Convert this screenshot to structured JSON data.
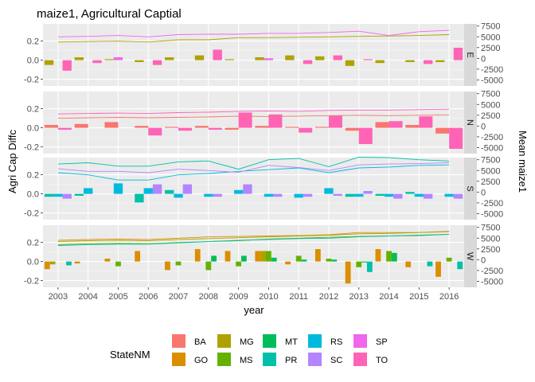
{
  "chart_data": {
    "type": "bar",
    "title": "maize1, Agricultural Captial",
    "xlabel": "year",
    "ylabel_left": "Agri Cap Diffc",
    "ylabel_right": "Mean maize1",
    "facet_type": "grid rows",
    "legend": {
      "title": "StateNM",
      "position": "bottom",
      "columns": 5
    },
    "x_ticks": [
      "2003",
      "2004",
      "2005",
      "2006",
      "2007",
      "2008",
      "2009",
      "2010",
      "2011",
      "2012",
      "2013",
      "2014",
      "2015",
      "2016"
    ],
    "y_left": {
      "ticks": [
        -0.2,
        0.0,
        0.2
      ],
      "tick_labels": [
        "-0.2",
        "0.0",
        "0.2"
      ],
      "range": [
        -0.27,
        0.38
      ]
    },
    "y_right": {
      "ticks": [
        -5000,
        -2500,
        0,
        2500,
        5000,
        7500
      ],
      "tick_labels": [
        "-5000",
        "-2500",
        "0",
        "2500",
        "5000",
        "7500"
      ],
      "range": [
        -6400,
        8000
      ]
    },
    "states": [
      {
        "code": "BA",
        "color": "#F8766D"
      },
      {
        "code": "GO",
        "color": "#DB8E00"
      },
      {
        "code": "MG",
        "color": "#AEA200"
      },
      {
        "code": "MS",
        "color": "#64B200"
      },
      {
        "code": "MT",
        "color": "#00BD5C"
      },
      {
        "code": "PR",
        "color": "#00C1A7"
      },
      {
        "code": "RS",
        "color": "#00BADE"
      },
      {
        "code": "SC",
        "color": "#B385FF"
      },
      {
        "code": "SP",
        "color": "#EF67EB"
      },
      {
        "code": "TO",
        "color": "#FF63B6"
      }
    ],
    "facets": [
      {
        "label": "E",
        "states": [
          "MG",
          "SP",
          "TO"
        ],
        "bars": {
          "MG": [
            -0.05,
            0.03,
            0.01,
            -0.02,
            0.03,
            0.05,
            0.01,
            0.03,
            0.05,
            0.04,
            -0.06,
            -0.03,
            -0.02,
            -0.02
          ],
          "SP": [
            0.0,
            0.0,
            0.03,
            0.0,
            0.0,
            0.0,
            0.0,
            0.02,
            0.0,
            0.0,
            0.0,
            0.0,
            0.0,
            0.0
          ],
          "TO": [
            -0.11,
            -0.03,
            0.0,
            -0.05,
            0.0,
            0.11,
            0.0,
            0.0,
            -0.04,
            0.05,
            0.01,
            0.0,
            -0.04,
            0.13
          ]
        },
        "means": {
          "MG": [
            3800,
            3900,
            4000,
            3800,
            4300,
            4300,
            4800,
            4800,
            4900,
            5000,
            5100,
            5200,
            5300,
            5500
          ],
          "SP": [
            5000,
            5100,
            5300,
            5000,
            5500,
            5600,
            5600,
            5800,
            5800,
            6000,
            6300,
            5300,
            6200,
            6500
          ]
        }
      },
      {
        "label": "N",
        "states": [
          "BA",
          "TO"
        ],
        "bars": {
          "BA": [
            0.03,
            0.04,
            0.06,
            0.02,
            0.01,
            0.02,
            -0.02,
            0.02,
            0.01,
            0.01,
            -0.03,
            0.06,
            0.03,
            -0.06
          ],
          "TO": [
            -0.02,
            0.0,
            0.0,
            -0.08,
            -0.03,
            -0.02,
            0.16,
            0.14,
            -0.05,
            0.13,
            -0.17,
            0.07,
            0.12,
            -0.22
          ]
        },
        "means": {
          "BA": [
            1800,
            1900,
            2000,
            1900,
            2000,
            2100,
            2300,
            2200,
            2300,
            2400,
            2500,
            2400,
            2500,
            2600
          ],
          "TO": [
            2800,
            2900,
            3000,
            2900,
            3100,
            3200,
            3400,
            3500,
            3400,
            3600,
            3700,
            3700,
            3800,
            3900
          ]
        }
      },
      {
        "label": "S",
        "states": [
          "PR",
          "RS",
          "SC"
        ],
        "bars": {
          "PR": [
            -0.03,
            -0.02,
            0.0,
            -0.09,
            0.04,
            0.0,
            0.0,
            0.0,
            0.0,
            0.0,
            -0.03,
            -0.02,
            0.02,
            0.0
          ],
          "RS": [
            -0.03,
            0.06,
            0.11,
            0.06,
            -0.04,
            -0.03,
            0.04,
            -0.03,
            -0.04,
            0.06,
            -0.03,
            -0.03,
            -0.03,
            -0.03
          ],
          "SC": [
            -0.05,
            0.0,
            0.0,
            0.1,
            0.1,
            -0.03,
            0.1,
            -0.03,
            -0.03,
            -0.02,
            0.03,
            -0.05,
            -0.05,
            -0.05
          ]
        },
        "means": {
          "PR": [
            6500,
            6800,
            6000,
            6000,
            7000,
            7200,
            5300,
            7500,
            7800,
            5900,
            8100,
            8000,
            7500,
            7200
          ],
          "RS": [
            4500,
            4000,
            2800,
            2800,
            4000,
            4300,
            4800,
            5200,
            5600,
            4500,
            5600,
            5800,
            6200,
            6300
          ],
          "SC": [
            5400,
            4800,
            4800,
            4500,
            5300,
            5000,
            4600,
            6200,
            5700,
            5000,
            6300,
            6500,
            6600,
            6800
          ]
        }
      },
      {
        "label": "W",
        "states": [
          "GO",
          "MG",
          "MS",
          "MT",
          "PR"
        ],
        "bars": {
          "GO": [
            -0.08,
            -0.02,
            0.03,
            0.11,
            -0.09,
            0.13,
            0.11,
            0.11,
            -0.03,
            0.13,
            -0.23,
            0.13,
            -0.06,
            -0.16
          ],
          "MG": [
            -0.03,
            0.0,
            0.0,
            0.0,
            0.0,
            0.0,
            0.0,
            0.11,
            0.0,
            0.0,
            0.0,
            0.0,
            0.0,
            0.0
          ],
          "MS": [
            0.0,
            0.0,
            -0.05,
            0.0,
            -0.04,
            -0.09,
            -0.05,
            0.11,
            0.06,
            0.03,
            -0.06,
            0.11,
            0.0,
            0.04
          ],
          "MT": [
            0.0,
            0.0,
            0.0,
            0.0,
            0.0,
            0.06,
            0.06,
            0.04,
            0.02,
            0.02,
            -0.01,
            0.09,
            0.0,
            0.0
          ],
          "PR": [
            -0.04,
            0.0,
            0.0,
            0.0,
            0.0,
            0.0,
            0.0,
            0.0,
            0.0,
            0.0,
            -0.11,
            0.0,
            -0.05,
            -0.08
          ]
        },
        "means": {
          "GO": [
            4500,
            4700,
            4800,
            4700,
            5000,
            5300,
            5400,
            5500,
            5600,
            5800,
            6300,
            6300,
            6300,
            6600
          ],
          "MG": [
            4200,
            4400,
            4500,
            4400,
            4700,
            4900,
            5100,
            5300,
            5500,
            5700,
            6000,
            6100,
            6300,
            6500
          ],
          "MS": [
            3500,
            3700,
            3800,
            3700,
            4000,
            4200,
            4400,
            4800,
            5000,
            5200,
            5400,
            5500,
            5600,
            5900
          ],
          "PR": [
            3300,
            3500,
            3600,
            3600,
            3900,
            4200,
            4500,
            4700,
            4900,
            5000,
            5300,
            5500,
            5700,
            5900
          ]
        }
      }
    ]
  }
}
